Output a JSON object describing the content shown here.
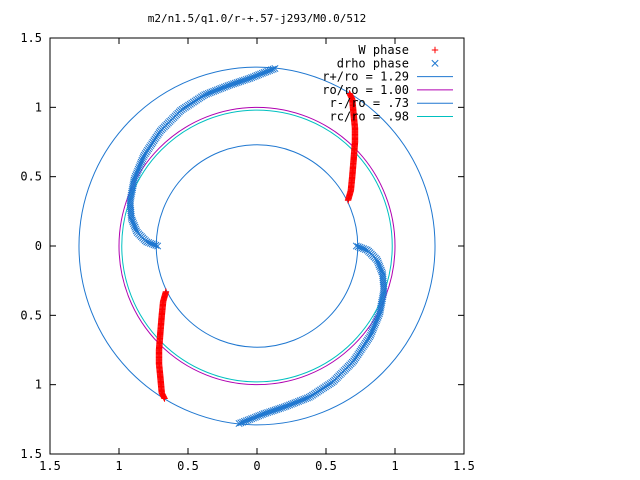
{
  "chart_data": {
    "type": "scatter",
    "title": "m2/n1.5/q1.0/r-+.57-j293/M0.0/512",
    "xlim": [
      -1.5,
      1.5
    ],
    "ylim": [
      -1.5,
      1.5
    ],
    "xticks": [
      -1.5,
      -1,
      -0.5,
      0,
      0.5,
      1,
      1.5
    ],
    "yticks": [
      -1.5,
      -1,
      -0.5,
      0,
      0.5,
      1,
      1.5
    ],
    "xtick_labels": [
      "1.5",
      "1",
      "0.5",
      "0",
      "0.5",
      "1",
      "1.5"
    ],
    "ytick_labels": [
      "1.5",
      "1",
      "0.5",
      "0",
      "0.5",
      "1",
      "1.5"
    ],
    "grid": false,
    "legend_position": "top-right",
    "circles": [
      {
        "name": "r+/ro = 1.29",
        "radius": 1.29,
        "color": "#1f77d0"
      },
      {
        "name": "ro/ro = 1.00",
        "radius": 1.0,
        "color": "#b000b0"
      },
      {
        "name": "r-/ro = .73",
        "radius": 0.73,
        "color": "#1f77d0"
      },
      {
        "name": "rc/ro = .98",
        "radius": 0.98,
        "color": "#00c0c0"
      }
    ],
    "series": [
      {
        "name": "W phase",
        "marker": "+",
        "color": "#ff0000",
        "arms": [
          {
            "x": [
              0.67,
              0.69,
              0.7,
              0.71,
              0.71,
              0.7,
              0.69,
              0.68,
              0.66
            ],
            "y": [
              1.1,
              1.06,
              0.95,
              0.85,
              0.75,
              0.62,
              0.5,
              0.4,
              0.33
            ]
          },
          {
            "x": [
              -0.67,
              -0.69,
              -0.7,
              -0.71,
              -0.71,
              -0.7,
              -0.69,
              -0.68,
              -0.66
            ],
            "y": [
              -1.1,
              -1.06,
              -0.95,
              -0.85,
              -0.75,
              -0.62,
              -0.5,
              -0.4,
              -0.33
            ]
          }
        ]
      },
      {
        "name": "drho phase",
        "marker": "x",
        "color": "#1f77d0",
        "arms": [
          {
            "x": [
              0.72,
              0.8,
              0.87,
              0.91,
              0.92,
              0.89,
              0.82,
              0.7,
              0.55,
              0.38,
              0.2,
              0.05,
              -0.05,
              -0.13
            ],
            "y": [
              0.0,
              -0.03,
              -0.1,
              -0.2,
              -0.32,
              -0.48,
              -0.65,
              -0.83,
              -0.98,
              -1.09,
              -1.16,
              -1.21,
              -1.25,
              -1.28
            ]
          },
          {
            "x": [
              -0.72,
              -0.8,
              -0.87,
              -0.91,
              -0.92,
              -0.89,
              -0.82,
              -0.7,
              -0.55,
              -0.38,
              -0.2,
              -0.05,
              0.05,
              0.13
            ],
            "y": [
              0.0,
              0.03,
              0.1,
              0.2,
              0.32,
              0.48,
              0.65,
              0.83,
              0.98,
              1.09,
              1.16,
              1.21,
              1.25,
              1.28
            ]
          }
        ]
      }
    ]
  }
}
